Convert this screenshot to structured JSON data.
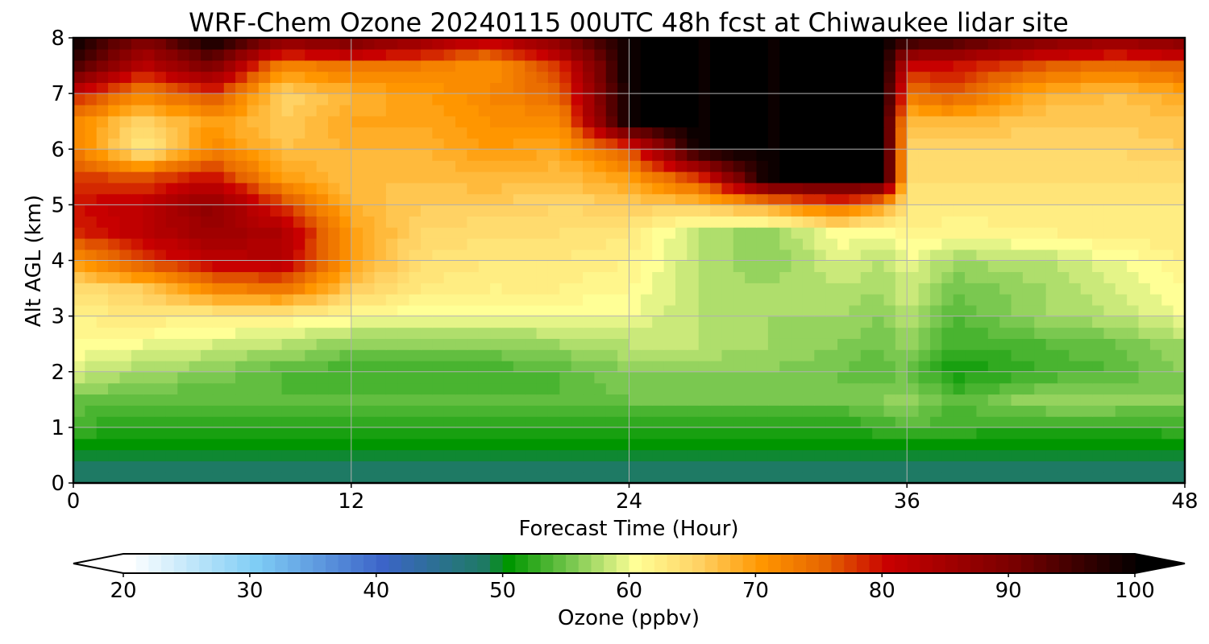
{
  "chart_data": {
    "type": "heatmap",
    "title": "WRF-Chem Ozone  20240115 00UTC 48h fcst at Chiwaukee lidar site",
    "xlabel": "Forecast Time (Hour)",
    "ylabel": "Alt AGL (km)",
    "xlim": [
      0,
      48
    ],
    "ylim": [
      0,
      8
    ],
    "xticks": [
      0,
      12,
      24,
      36,
      48
    ],
    "yticks": [
      0,
      1,
      2,
      3,
      4,
      5,
      6,
      7,
      8
    ],
    "grid": true,
    "colorbar": {
      "label": "Ozone  (ppbv)",
      "min": 20,
      "max": 100,
      "ticks": [
        20,
        30,
        40,
        50,
        60,
        70,
        80,
        90,
        100
      ],
      "extend": "both",
      "colors": {
        "below": "#ffffff",
        "c20": "#ffffff",
        "c30": "#7fcdf5",
        "c40": "#3c64c8",
        "c48": "#1e7a64",
        "c50": "#009600",
        "c55": "#7ac850",
        "c60": "#ffff96",
        "c65": "#ffd264",
        "c70": "#ff9600",
        "c75": "#e66400",
        "c80": "#c80000",
        "c90": "#780000",
        "c100": "#000000",
        "above": "#000000"
      }
    },
    "x": [
      0,
      3,
      6,
      9,
      12,
      15,
      18,
      21,
      24,
      27,
      30,
      33,
      35,
      36,
      38,
      42,
      45,
      48
    ],
    "y": [
      0,
      0.5,
      1,
      1.5,
      2,
      2.5,
      3,
      3.5,
      4,
      4.5,
      5,
      5.5,
      6,
      6.5,
      7,
      7.5,
      8
    ],
    "z": [
      [
        48,
        48,
        48,
        48,
        48,
        48,
        48,
        48,
        48,
        48,
        48,
        48,
        48,
        48,
        48,
        48,
        48,
        48
      ],
      [
        49,
        49,
        49,
        49,
        49,
        49,
        49,
        49,
        49,
        49,
        49,
        49,
        49,
        49,
        49,
        49,
        49,
        49
      ],
      [
        53,
        52,
        52,
        52,
        52,
        52,
        52,
        52,
        52,
        52,
        52,
        52,
        53,
        54,
        53,
        52,
        52,
        53
      ],
      [
        55,
        54,
        54,
        54,
        54,
        54,
        54,
        54,
        55,
        55,
        55,
        55,
        56,
        57,
        54,
        57,
        57,
        56
      ],
      [
        59,
        57,
        56,
        54,
        53,
        53,
        53,
        54,
        56,
        56,
        56,
        55,
        54,
        55,
        51,
        53,
        54,
        56
      ],
      [
        61,
        60,
        59,
        58,
        56,
        56,
        56,
        57,
        58,
        58,
        57,
        56,
        55,
        57,
        53,
        54,
        55,
        57
      ],
      [
        62,
        63,
        62,
        62,
        61,
        60,
        60,
        60,
        60,
        58,
        57,
        57,
        56,
        58,
        54,
        57,
        58,
        60
      ],
      [
        64,
        66,
        72,
        74,
        66,
        63,
        62,
        62,
        61,
        58,
        57,
        58,
        57,
        59,
        55,
        57,
        59,
        61
      ],
      [
        70,
        77,
        82,
        83,
        70,
        64,
        63,
        63,
        62,
        58,
        56,
        59,
        58,
        60,
        57,
        58,
        60,
        62
      ],
      [
        78,
        82,
        86,
        84,
        70,
        65,
        64,
        64,
        63,
        58,
        56,
        61,
        60,
        62,
        61,
        62,
        62,
        63
      ],
      [
        80,
        82,
        88,
        78,
        68,
        66,
        66,
        65,
        66,
        66,
        70,
        75,
        70,
        63,
        63,
        63,
        63,
        63
      ],
      [
        78,
        76,
        80,
        70,
        67,
        67,
        68,
        67,
        70,
        78,
        100,
        100,
        100,
        64,
        64,
        64,
        64,
        64
      ],
      [
        73,
        62,
        72,
        67,
        68,
        68,
        70,
        69,
        76,
        100,
        100,
        100,
        100,
        65,
        65,
        65,
        65,
        66
      ],
      [
        72,
        65,
        70,
        66,
        69,
        69,
        71,
        71,
        100,
        100,
        100,
        100,
        100,
        67,
        68,
        66,
        66,
        67
      ],
      [
        80,
        72,
        78,
        65,
        68,
        70,
        72,
        75,
        100,
        100,
        100,
        100,
        100,
        74,
        76,
        68,
        67,
        69
      ],
      [
        95,
        82,
        90,
        72,
        74,
        73,
        71,
        78,
        100,
        100,
        100,
        100,
        100,
        80,
        80,
        76,
        74,
        76
      ],
      [
        100,
        90,
        100,
        90,
        92,
        88,
        82,
        90,
        100,
        100,
        100,
        100,
        100,
        98,
        96,
        90,
        88,
        90
      ]
    ]
  }
}
